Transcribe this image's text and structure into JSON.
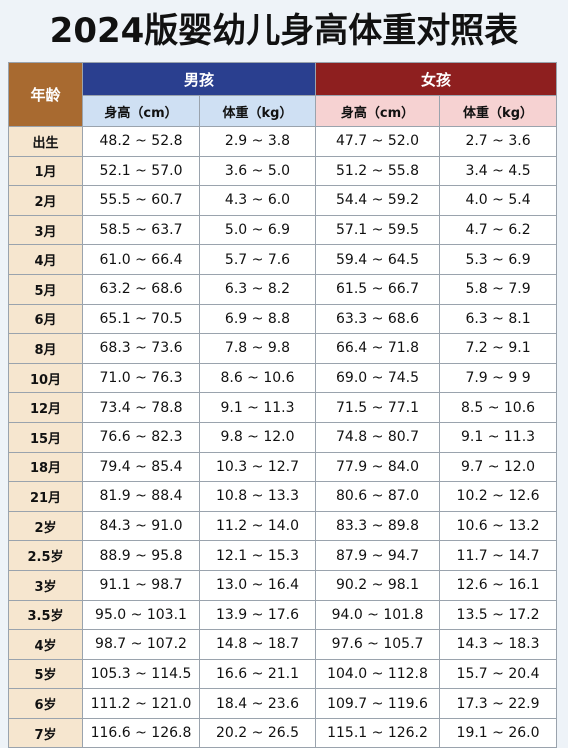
{
  "title": "2024版婴幼儿身高体重对照表",
  "header": {
    "age": "年龄",
    "boy": "男孩",
    "girl": "女孩",
    "boy_height": "身高（cm）",
    "boy_weight": "体重（kg）",
    "girl_height": "身高（cm）",
    "girl_weight": "体重（kg）"
  },
  "colors": {
    "boy": "#2a3f8f",
    "girl": "#8e1f1f",
    "age": "#a86a30"
  },
  "rows": [
    {
      "age": "出生",
      "bh": "48.2 ~ 52.8",
      "bw": "2.9 ~ 3.8",
      "gh": "47.7  ~ 52.0",
      "gw": "2.7 ~ 3.6"
    },
    {
      "age": "1月",
      "bh": "52.1 ~ 57.0",
      "bw": "3.6 ~ 5.0",
      "gh": "51.2 ~ 55.8",
      "gw": "3.4 ~ 4.5"
    },
    {
      "age": "2月",
      "bh": "55.5 ~ 60.7",
      "bw": "4.3 ~ 6.0",
      "gh": "54.4 ~ 59.2",
      "gw": "4.0 ~ 5.4"
    },
    {
      "age": "3月",
      "bh": "58.5 ~ 63.7",
      "bw": "5.0 ~ 6.9",
      "gh": "57.1 ~ 59.5",
      "gw": "4.7 ~ 6.2"
    },
    {
      "age": "4月",
      "bh": "61.0 ~ 66.4",
      "bw": "5.7 ~ 7.6",
      "gh": "59.4 ~ 64.5",
      "gw": "5.3 ~ 6.9"
    },
    {
      "age": "5月",
      "bh": "63.2 ~ 68.6",
      "bw": "6.3 ~ 8.2",
      "gh": "61.5 ~ 66.7",
      "gw": "5.8 ~ 7.9"
    },
    {
      "age": "6月",
      "bh": "65.1 ~ 70.5",
      "bw": "6.9 ~ 8.8",
      "gh": "63.3 ~ 68.6",
      "gw": "6.3 ~ 8.1"
    },
    {
      "age": "8月",
      "bh": "68.3 ~ 73.6",
      "bw": "7.8 ~ 9.8",
      "gh": "66.4 ~ 71.8",
      "gw": "7.2 ~ 9.1"
    },
    {
      "age": "10月",
      "bh": "71.0 ~ 76.3",
      "bw": "8.6  ~ 10.6",
      "gh": "69.0 ~ 74.5",
      "gw": "7.9 ~ 9 9"
    },
    {
      "age": "12月",
      "bh": "73.4 ~ 78.8",
      "bw": "9.1 ~ 11.3",
      "gh": "71.5 ~ 77.1",
      "gw": "8.5 ~ 10.6"
    },
    {
      "age": "15月",
      "bh": "76.6 ~ 82.3",
      "bw": "9.8 ~ 12.0",
      "gh": "74.8 ~ 80.7",
      "gw": "9.1 ~ 11.3"
    },
    {
      "age": "18月",
      "bh": "79.4 ~ 85.4",
      "bw": "10.3 ~ 12.7",
      "gh": "77.9 ~ 84.0",
      "gw": "9.7 ~ 12.0"
    },
    {
      "age": "21月",
      "bh": "81.9 ~ 88.4",
      "bw": "10.8 ~ 13.3",
      "gh": "80.6 ~ 87.0",
      "gw": "10.2 ~ 12.6"
    },
    {
      "age": "2岁",
      "bh": "84.3 ~ 91.0",
      "bw": "11.2 ~ 14.0",
      "gh": "83.3 ~ 89.8",
      "gw": "10.6 ~ 13.2"
    },
    {
      "age": "2.5岁",
      "bh": "88.9 ~ 95.8",
      "bw": "12.1 ~ 15.3",
      "gh": "87.9 ~ 94.7",
      "gw": "11.7 ~ 14.7"
    },
    {
      "age": "3岁",
      "bh": "91.1 ~ 98.7",
      "bw": "13.0 ~ 16.4",
      "gh": "90.2 ~ 98.1",
      "gw": "12.6 ~ 16.1"
    },
    {
      "age": "3.5岁",
      "bh": "95.0 ~ 103.1",
      "bw": "13.9 ~ 17.6",
      "gh": "94.0 ~ 101.8",
      "gw": "13.5 ~ 17.2"
    },
    {
      "age": "4岁",
      "bh": "98.7 ~ 107.2",
      "bw": "14.8 ~ 18.7",
      "gh": "97.6 ~ 105.7",
      "gw": "14.3 ~ 18.3"
    },
    {
      "age": "5岁",
      "bh": "105.3 ~ 114.5",
      "bw": "16.6 ~ 21.1",
      "gh": "104.0 ~ 112.8",
      "gw": "15.7 ~ 20.4"
    },
    {
      "age": "6岁",
      "bh": "111.2 ~ 121.0",
      "bw": "18.4 ~ 23.6",
      "gh": "109.7 ~ 119.6",
      "gw": "17.3 ~ 22.9"
    },
    {
      "age": "7岁",
      "bh": "116.6 ~ 126.8",
      "bw": "20.2 ~ 26.5",
      "gh": "115.1 ~ 126.2",
      "gw": "19.1 ~ 26.0"
    }
  ]
}
